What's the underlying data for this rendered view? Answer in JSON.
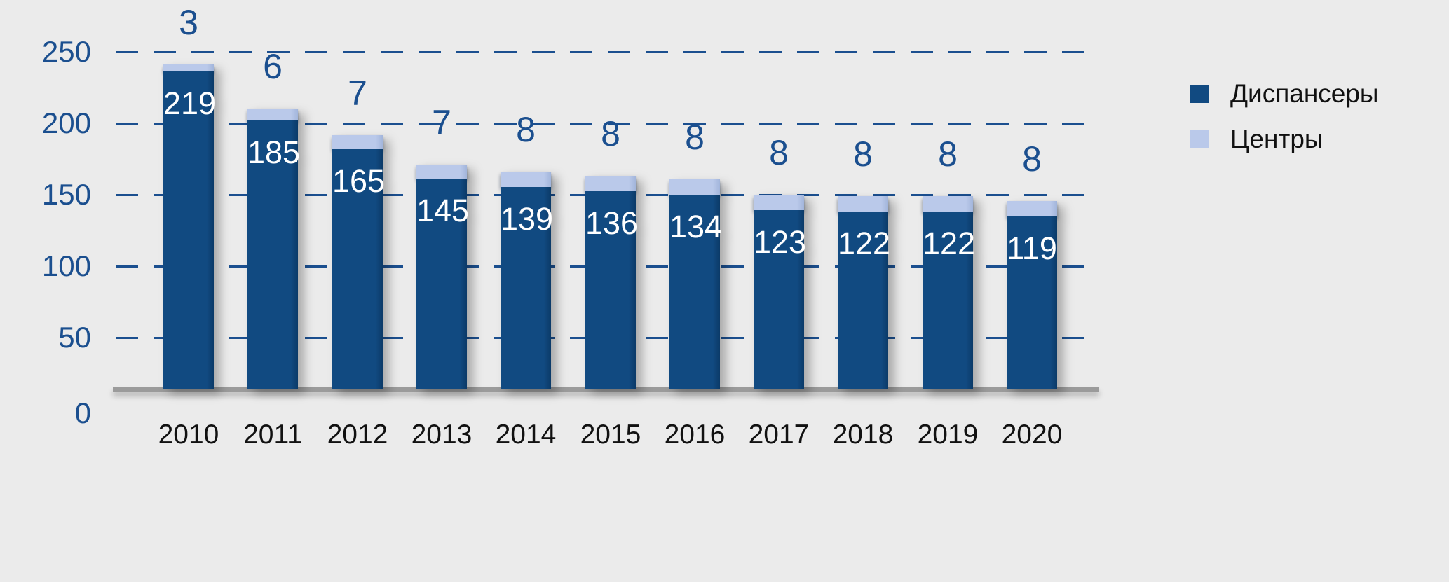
{
  "chart_data": {
    "type": "bar",
    "stacked": true,
    "title": "",
    "categories": [
      "2010",
      "2011",
      "2012",
      "2013",
      "2014",
      "2015",
      "2016",
      "2017",
      "2018",
      "2019",
      "2020"
    ],
    "series": [
      {
        "name": "Диспансеры",
        "color": "#114a81",
        "values": [
          219,
          185,
          165,
          145,
          139,
          136,
          134,
          123,
          122,
          122,
          119
        ]
      },
      {
        "name": "Центры",
        "color": "#bac9ea",
        "values": [
          3,
          6,
          7,
          7,
          8,
          8,
          8,
          8,
          8,
          8,
          8
        ]
      }
    ],
    "y_axis": {
      "min": 0,
      "max": 250,
      "ticks": [
        250,
        200,
        150,
        100,
        50,
        0
      ]
    },
    "grid": "horizontal dashed",
    "legend_position": "right",
    "value_labels": {
      "inside_dark_bars": true,
      "above_bars_series": "Центры"
    },
    "colors": {
      "background": "#ebebeb",
      "gridline": "#1b4f8f",
      "tick_label": "#1b4f8f",
      "top_value_label": "#1b4f8f",
      "inside_value_label": "#ffffff",
      "category_label": "#111111",
      "axis_line": "#9b9b9b",
      "legend_text": "#111111"
    }
  }
}
